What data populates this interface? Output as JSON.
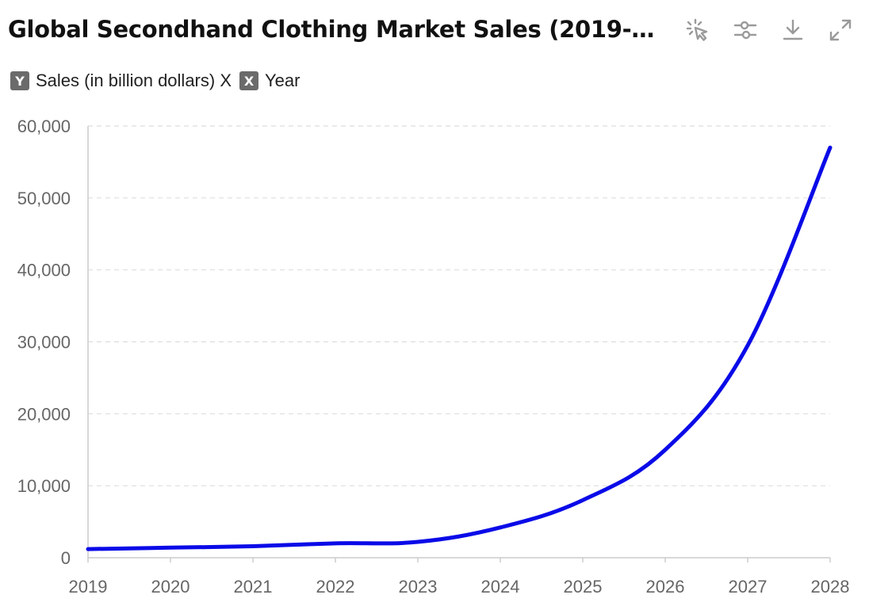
{
  "header": {
    "title": "Global Secondhand Clothing Market Sales (2019-20…"
  },
  "toolbar": {
    "icons": [
      "select-icon",
      "settings-sliders-icon",
      "download-icon",
      "fullscreen-icon"
    ]
  },
  "legend": {
    "y_badge": "Y",
    "y_label": "Sales (in billion dollars) X",
    "x_badge": "X",
    "x_label": "Year"
  },
  "colors": {
    "line": "#0a0ae8",
    "grid": "#dddddd",
    "axis": "#cccccc",
    "tick_text": "#666666",
    "badge": "#6b6b6b",
    "icon": "#9a9a9a"
  },
  "chart_data": {
    "type": "line",
    "title": "Global Secondhand Clothing Market Sales (2019-20…",
    "xlabel": "Year",
    "ylabel": "Sales (in billion dollars)",
    "categories": [
      "2019",
      "2020",
      "2021",
      "2022",
      "2023",
      "2024",
      "2025",
      "2026",
      "2027",
      "2028"
    ],
    "series": [
      {
        "name": "Sales (in billion dollars)",
        "values": [
          1200,
          1400,
          1600,
          2000,
          2200,
          4200,
          8000,
          15000,
          29500,
          57000
        ]
      }
    ],
    "ylim": [
      0,
      60000
    ],
    "yticks": [
      0,
      10000,
      20000,
      30000,
      40000,
      50000,
      60000
    ],
    "ytick_labels": [
      "0",
      "10,000",
      "20,000",
      "30,000",
      "40,000",
      "50,000",
      "60,000"
    ],
    "grid": true,
    "legend": "top-left"
  }
}
